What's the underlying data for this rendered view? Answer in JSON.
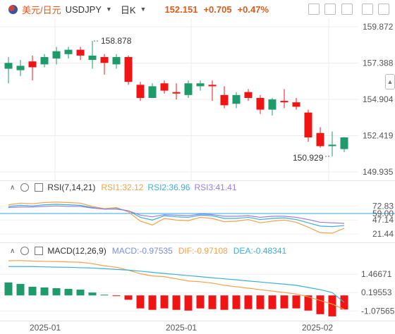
{
  "header": {
    "symbol_cn": "美元/日元",
    "symbol": "USDJPY",
    "period": "日K",
    "price": "152.151",
    "change": "+0.705",
    "change_pct": "+0.47%"
  },
  "colors": {
    "up": "#1f9a6b",
    "down": "#f01414",
    "rsi1": "#f5a04a",
    "rsi2": "#3ab0d8",
    "rsi3": "#9a7ce0",
    "macd": "#7a8ee0",
    "dif": "#f5a04a",
    "dea": "#3ab0d8",
    "level": "#2aa8e8"
  },
  "rsi": {
    "name": "RSI(7,14,21)",
    "rsi1": "RSI1:32.12",
    "rsi2": "RSI2:36.96",
    "rsi3": "RSI3:41.41",
    "level_label": "59.00"
  },
  "macd": {
    "name": "MACD(12,26,9)",
    "macd": "MACD:-0.97535",
    "dif": "DIF:-0.97108",
    "dea": "DEA:-0.48341"
  },
  "chart_data": [
    {
      "type": "candlestick",
      "yticks": [
        "159.872",
        "157.388",
        "154.904",
        "152.419",
        "149.935"
      ],
      "ylim": [
        149.935,
        159.872
      ],
      "xticks": [
        "2025-01",
        "2025-01",
        "2025-02"
      ],
      "annotations": {
        "high": "158.878",
        "low": "150.929"
      },
      "candles": [
        {
          "o": 157.0,
          "h": 157.8,
          "l": 156.0,
          "c": 157.4
        },
        {
          "o": 156.9,
          "h": 157.6,
          "l": 156.5,
          "c": 157.2
        },
        {
          "o": 157.5,
          "h": 157.9,
          "l": 156.2,
          "c": 157.1
        },
        {
          "o": 157.3,
          "h": 158.0,
          "l": 157.1,
          "c": 157.8
        },
        {
          "o": 157.7,
          "h": 158.5,
          "l": 157.3,
          "c": 158.2
        },
        {
          "o": 158.0,
          "h": 158.5,
          "l": 157.7,
          "c": 158.3
        },
        {
          "o": 158.3,
          "h": 158.5,
          "l": 157.6,
          "c": 157.9
        },
        {
          "o": 157.6,
          "h": 158.9,
          "l": 157.0,
          "c": 157.9
        },
        {
          "o": 157.8,
          "h": 158.0,
          "l": 156.6,
          "c": 157.4
        },
        {
          "o": 157.3,
          "h": 158.0,
          "l": 157.0,
          "c": 157.8
        },
        {
          "o": 157.8,
          "h": 157.9,
          "l": 155.9,
          "c": 156.1
        },
        {
          "o": 155.9,
          "h": 156.1,
          "l": 154.8,
          "c": 155.0
        },
        {
          "o": 155.0,
          "h": 156.0,
          "l": 155.0,
          "c": 155.8
        },
        {
          "o": 156.0,
          "h": 156.2,
          "l": 155.3,
          "c": 155.5
        },
        {
          "o": 155.4,
          "h": 156.0,
          "l": 154.9,
          "c": 155.3
        },
        {
          "o": 155.2,
          "h": 156.2,
          "l": 155.0,
          "c": 156.0
        },
        {
          "o": 155.8,
          "h": 156.2,
          "l": 155.5,
          "c": 156.0
        },
        {
          "o": 155.9,
          "h": 156.2,
          "l": 154.8,
          "c": 155.8
        },
        {
          "o": 155.2,
          "h": 155.8,
          "l": 154.3,
          "c": 154.5
        },
        {
          "o": 154.6,
          "h": 155.4,
          "l": 154.3,
          "c": 155.2
        },
        {
          "o": 155.4,
          "h": 155.6,
          "l": 154.8,
          "c": 155.0
        },
        {
          "o": 155.0,
          "h": 155.2,
          "l": 153.9,
          "c": 154.2
        },
        {
          "o": 154.2,
          "h": 155.0,
          "l": 153.8,
          "c": 154.9
        },
        {
          "o": 154.8,
          "h": 155.6,
          "l": 154.3,
          "c": 154.7
        },
        {
          "o": 154.7,
          "h": 155.0,
          "l": 154.2,
          "c": 154.4
        },
        {
          "o": 154.0,
          "h": 154.2,
          "l": 152.0,
          "c": 152.3
        },
        {
          "o": 152.6,
          "h": 153.0,
          "l": 151.6,
          "c": 151.7
        },
        {
          "o": 151.7,
          "h": 152.7,
          "l": 151.0,
          "c": 151.8
        },
        {
          "o": 151.5,
          "h": 152.3,
          "l": 151.3,
          "c": 152.3
        }
      ]
    },
    {
      "type": "line",
      "title": "RSI(7,14,21)",
      "yticks": [
        "72.83",
        "59.00",
        "47.14",
        "21.44"
      ],
      "ylim": [
        10,
        90
      ],
      "level": 59.0,
      "series": [
        {
          "name": "RSI1",
          "values": [
            75,
            78,
            77,
            79,
            80,
            79,
            78,
            72,
            68,
            70,
            62,
            45,
            38,
            50,
            47,
            46,
            52,
            50,
            44,
            45,
            48,
            42,
            45,
            47,
            43,
            34,
            24,
            23,
            32
          ]
        },
        {
          "name": "RSI2",
          "values": [
            72,
            74,
            73,
            75,
            76,
            75,
            74,
            70,
            67,
            68,
            64,
            52,
            47,
            55,
            53,
            52,
            56,
            55,
            50,
            50,
            52,
            48,
            50,
            51,
            48,
            42,
            36,
            35,
            37
          ]
        },
        {
          "name": "RSI3",
          "values": [
            70,
            71,
            71,
            72,
            73,
            72,
            72,
            69,
            67,
            67,
            64,
            56,
            53,
            57,
            56,
            55,
            58,
            57,
            54,
            54,
            55,
            52,
            54,
            54,
            52,
            48,
            43,
            42,
            41
          ]
        }
      ]
    },
    {
      "type": "bar",
      "title": "MACD(12,26,9)",
      "yticks": [
        "1.46671",
        "0.19553",
        "-1.07565"
      ],
      "ylim": [
        -1.6,
        2.6
      ],
      "series": [
        {
          "name": "MACD",
          "values": [
            0.9,
            0.8,
            0.6,
            0.55,
            0.5,
            0.45,
            0.4,
            0.2,
            0.05,
            -0.05,
            -0.3,
            -0.9,
            -1.0,
            -0.9,
            -1.0,
            -1.05,
            -0.9,
            -0.95,
            -1.0,
            -0.95,
            -0.95,
            -0.95,
            -0.95,
            -0.9,
            -0.9,
            -1.05,
            -1.3,
            -1.45,
            -0.975
          ]
        },
        {
          "name": "DIF",
          "values": [
            2.4,
            2.42,
            2.38,
            2.36,
            2.35,
            2.32,
            2.3,
            2.2,
            2.05,
            1.95,
            1.75,
            1.5,
            1.35,
            1.3,
            1.15,
            1.0,
            0.95,
            0.85,
            0.7,
            0.6,
            0.5,
            0.4,
            0.3,
            0.2,
            0.1,
            -0.1,
            -0.35,
            -0.6,
            -0.97
          ]
        },
        {
          "name": "DEA",
          "values": [
            2.0,
            2.0,
            2.0,
            1.98,
            1.96,
            1.95,
            1.92,
            1.9,
            1.85,
            1.8,
            1.75,
            1.68,
            1.6,
            1.52,
            1.45,
            1.37,
            1.3,
            1.22,
            1.15,
            1.08,
            1.0,
            0.93,
            0.85,
            0.78,
            0.7,
            0.55,
            0.4,
            0.2,
            -0.48
          ]
        }
      ]
    }
  ]
}
